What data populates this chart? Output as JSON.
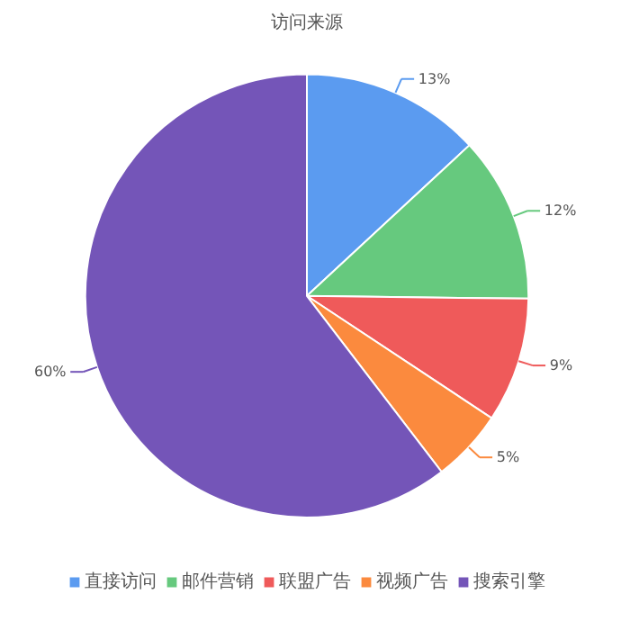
{
  "chart_data": {
    "type": "pie",
    "title": "访问来源",
    "categories": [
      "直接访问",
      "邮件营销",
      "联盟广告",
      "视频广告",
      "搜索引擎"
    ],
    "values": [
      13.1,
      12.1,
      9.1,
      5.3,
      60.4
    ],
    "value_labels": [
      "13%",
      "12%",
      "9%",
      "5%",
      "60%"
    ],
    "colors": [
      "#5b9bf0",
      "#66c97e",
      "#ef5a5a",
      "#fb8a3e",
      "#7455b8"
    ],
    "legend": "bottom"
  }
}
